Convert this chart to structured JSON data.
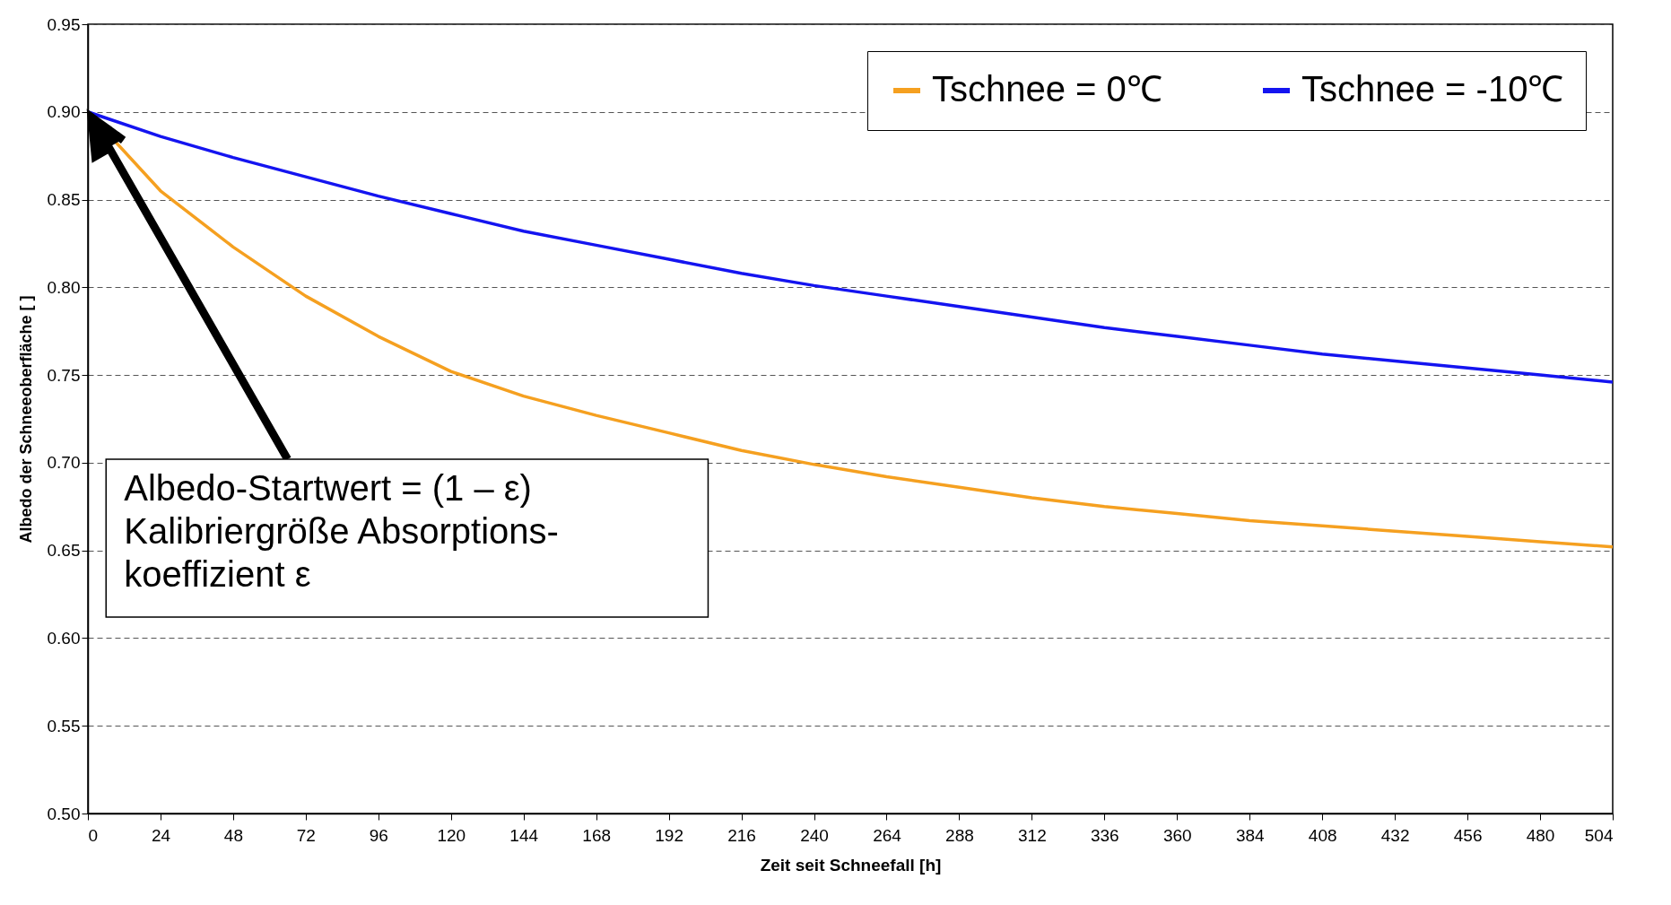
{
  "chart_data": {
    "type": "line",
    "xlabel": "Zeit seit Schneefall [h]",
    "ylabel": "Albedo der Schneeoberfläche [ ]",
    "x": [
      0,
      24,
      48,
      72,
      96,
      120,
      144,
      168,
      192,
      216,
      240,
      264,
      288,
      312,
      336,
      360,
      384,
      408,
      432,
      456,
      480,
      504
    ],
    "series": [
      {
        "name": "Tschnee = 0℃",
        "color": "#f5a020",
        "values": [
          0.9,
          0.855,
          0.823,
          0.795,
          0.772,
          0.752,
          0.738,
          0.727,
          0.717,
          0.707,
          0.699,
          0.692,
          0.686,
          0.68,
          0.675,
          0.671,
          0.667,
          0.664,
          0.661,
          0.658,
          0.655,
          0.652
        ]
      },
      {
        "name": "Tschnee = -10℃",
        "color": "#1414f0",
        "values": [
          0.9,
          0.886,
          0.874,
          0.863,
          0.852,
          0.842,
          0.832,
          0.824,
          0.816,
          0.808,
          0.801,
          0.795,
          0.789,
          0.783,
          0.777,
          0.772,
          0.767,
          0.762,
          0.758,
          0.754,
          0.75,
          0.746
        ]
      }
    ],
    "xlim": [
      0,
      504
    ],
    "xticks": [
      0,
      24,
      48,
      72,
      96,
      120,
      144,
      168,
      192,
      216,
      240,
      264,
      288,
      312,
      336,
      360,
      384,
      408,
      432,
      456,
      480,
      504
    ],
    "ylim": [
      0.5,
      0.95
    ],
    "yticks": [
      {
        "value": 0.5,
        "label": "0.50"
      },
      0.55,
      {
        "value": 0.6,
        "label": "0.60"
      },
      0.65,
      {
        "value": 0.7,
        "label": "0.70"
      },
      0.75,
      {
        "value": 0.8,
        "label": "0.80"
      },
      0.85,
      {
        "value": 0.9,
        "label": "0.90"
      },
      0.95
    ],
    "grid": "y",
    "legend": "top right",
    "line_style": "solid",
    "marker": "none",
    "annotations": [
      "Albedo-Startwert = (1 – ε)\nKalibriergröße Absorptions-\nkoeffizient ε"
    ]
  }
}
